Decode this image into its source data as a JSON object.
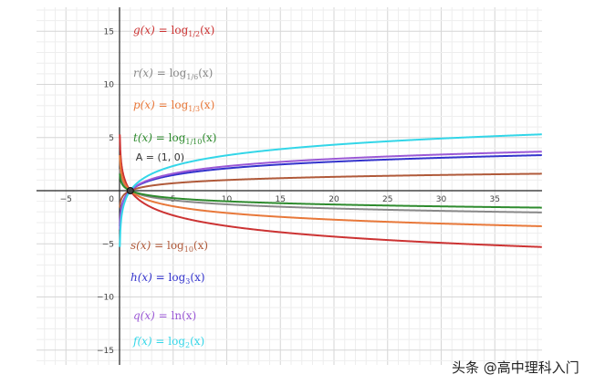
{
  "watermark": "头条 @高中理科入门",
  "point": {
    "name": "A",
    "label": "A = (1, 0)",
    "x": 1,
    "y": 0
  },
  "chart_data": {
    "type": "line",
    "title": "",
    "xlabel": "",
    "ylabel": "",
    "xlim": [
      -9,
      40
    ],
    "ylim": [
      -16,
      17
    ],
    "grid": true,
    "x_ticks": [
      -5,
      5,
      10,
      15,
      20,
      25,
      30,
      35
    ],
    "x_tick_labels": [
      "−5",
      "5",
      "10",
      "15",
      "20",
      "25",
      "30",
      "35"
    ],
    "y_ticks": [
      15,
      10,
      5,
      -5,
      -10,
      -15
    ],
    "y_tick_labels": [
      "15",
      "10",
      "5",
      "−5",
      "−10",
      "−15"
    ],
    "origin_label": "0",
    "series": [
      {
        "fn": "g",
        "base": 0.5,
        "color": "#cc3333",
        "label_parts": [
          "g(x)",
          " = ",
          "log",
          "1/2",
          "(x)"
        ]
      },
      {
        "fn": "r",
        "base": 0.1666667,
        "color": "#888888",
        "label_parts": [
          "r(x)",
          " = ",
          "log",
          "1/6",
          "(x)"
        ]
      },
      {
        "fn": "p",
        "base": 0.3333333,
        "color": "#e8783a",
        "label_parts": [
          "p(x)",
          " = ",
          "log",
          "1/3",
          "(x)"
        ]
      },
      {
        "fn": "t",
        "base": 0.1,
        "color": "#2e8b2e",
        "label_parts": [
          "t(x)",
          " = ",
          "log",
          "1/10",
          "(x)"
        ]
      },
      {
        "fn": "s",
        "base": 10,
        "color": "#b05a3a",
        "label_parts": [
          "s(x)",
          " = ",
          "log",
          "10",
          "(x)"
        ]
      },
      {
        "fn": "h",
        "base": 3,
        "color": "#3333cc",
        "label_parts": [
          "h(x)",
          " = ",
          "log",
          "3",
          "(x)"
        ]
      },
      {
        "fn": "q",
        "base": 2.7182818,
        "color": "#9b59d6",
        "label_parts": [
          "q(x)",
          " = ",
          "ln",
          "",
          "(x)"
        ]
      },
      {
        "fn": "f",
        "base": 2,
        "color": "#33d6e8",
        "label_parts": [
          "f(x)",
          " = ",
          "log",
          "2",
          "(x)"
        ]
      }
    ]
  }
}
